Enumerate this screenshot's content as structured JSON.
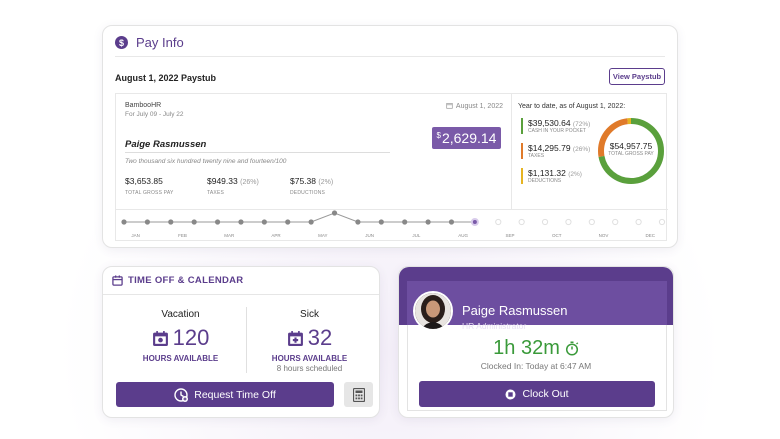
{
  "pay_info": {
    "title": "Pay Info",
    "paystub_title": "August 1, 2022 Paystub",
    "view_button": "View Paystub",
    "company": "BambooHR",
    "period": "For July 09 - July 22",
    "date": "August 1, 2022",
    "employee": "Paige Rasmussen",
    "net_currency": "$",
    "net_amount": "2,629.14",
    "amount_words": "Two thousand six hundred twenty nine and fourteen/100",
    "gross": {
      "value": "$3,653.85",
      "label": "TOTAL GROSS PAY"
    },
    "taxes": {
      "value": "$949.33",
      "pct": "(26%)",
      "label": "TAXES"
    },
    "deductions": {
      "value": "$75.38",
      "pct": "(2%)",
      "label": "DEDUCTIONS"
    },
    "ytd": {
      "title": "Year to date, as of August 1, 2022:",
      "items": [
        {
          "value": "$39,530.64",
          "pct": "(72%)",
          "label": "CASH IN YOUR POCKET",
          "color": "#5aa03c",
          "share": 0.72
        },
        {
          "value": "$14,295.79",
          "pct": "(26%)",
          "label": "TAXES",
          "color": "#e07a2a",
          "share": 0.26
        },
        {
          "value": "$1,131.32",
          "pct": "(2%)",
          "label": "DEDUCTIONS",
          "color": "#e6b422",
          "share": 0.02
        }
      ],
      "total_value": "$54,957.75",
      "total_label": "TOTAL GROSS PAY"
    },
    "timeline_months": [
      "JAN",
      "FEB",
      "MAR",
      "APR",
      "MAY",
      "JUN",
      "JUL",
      "AUG",
      "SEP",
      "OCT",
      "NOV",
      "DEC"
    ]
  },
  "time_off": {
    "title": "TIME OFF & CALENDAR",
    "vacation": {
      "name": "Vacation",
      "hours": "120",
      "label": "HOURS AVAILABLE"
    },
    "sick": {
      "name": "Sick",
      "hours": "32",
      "label": "HOURS AVAILABLE",
      "scheduled": "8 hours scheduled"
    },
    "request_button": "Request Time Off"
  },
  "clock": {
    "name": "Paige Rasmussen",
    "role": "HR Administrator",
    "elapsed": "1h 32m",
    "clocked_in": "Clocked In: Today at 6:47 AM",
    "button": "Clock Out"
  },
  "colors": {
    "brand": "#5b3d8c",
    "green": "#3a9a3a"
  }
}
